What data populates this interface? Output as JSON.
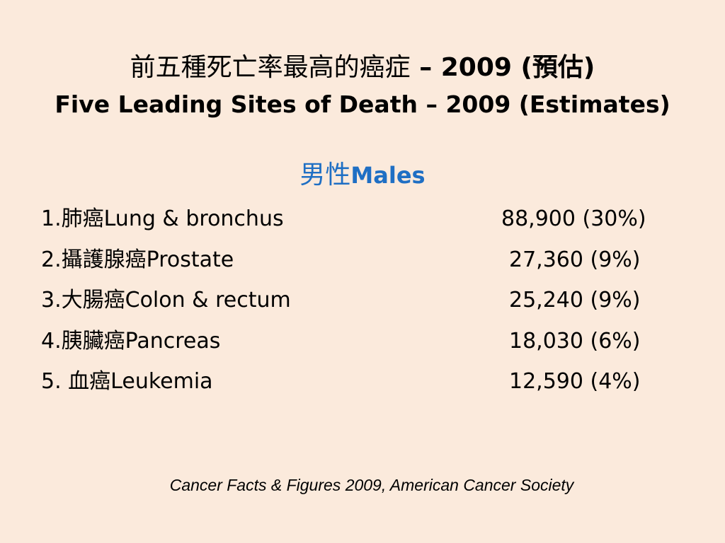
{
  "title": {
    "chinese": "前五種死亡率最高的癌症",
    "chinese_suffix": " – 2009 (預估)",
    "english": "Five Leading Sites of Death – 2009 (Estimates)"
  },
  "section": {
    "chinese": "男性",
    "english": "Males"
  },
  "rows": [
    {
      "number": "1.",
      "chinese": "肺癌",
      "english": "Lung & bronchus",
      "value": "88,900 (30%)"
    },
    {
      "number": "2.",
      "chinese": "攝護腺癌",
      "english": "Prostate",
      "value": "27,360 (9%)"
    },
    {
      "number": "3.",
      "chinese": "大腸癌",
      "english": "Colon & rectum",
      "value": "25,240 (9%)"
    },
    {
      "number": "4.",
      "chinese": "胰臟癌",
      "english": "Pancreas",
      "value": "18,030 (6%)"
    },
    {
      "number": "5. ",
      "chinese": "血癌",
      "english": "Leukemia",
      "value": "12,590 (4%)"
    }
  ],
  "source": "Cancer Facts & Figures 2009,  American Cancer Society"
}
